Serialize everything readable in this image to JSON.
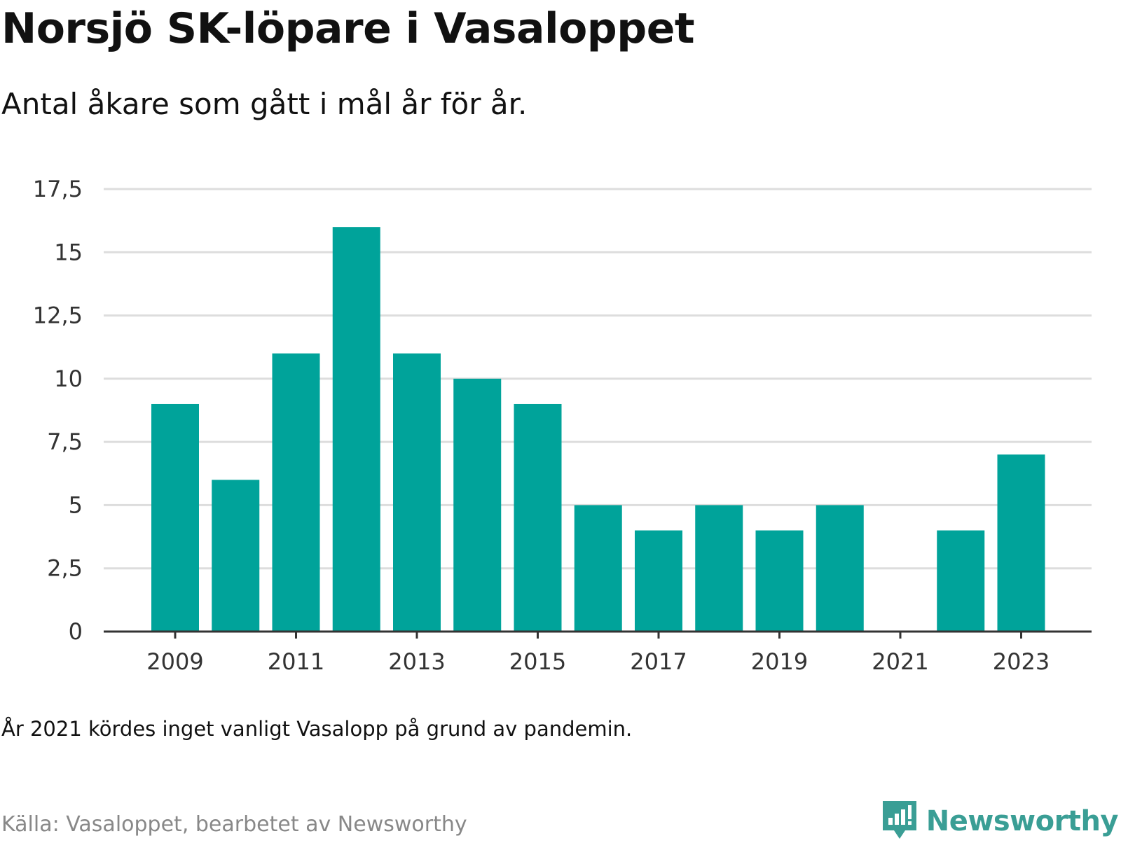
{
  "header": {
    "title": "Norsjö SK-löpare i Vasaloppet",
    "subtitle": "Antal åkare som gått i mål år för år."
  },
  "footer": {
    "note": "År 2021 kördes inget vanligt Vasalopp på grund av pandemin.",
    "source": "Källa: Vasaloppet, bearbetet av Newsworthy",
    "brand": "Newsworthy",
    "brand_icon": "newsworthy-logo-icon",
    "brand_color": "#3a9e95"
  },
  "chart_data": {
    "type": "bar",
    "title": "Norsjö SK-löpare i Vasaloppet",
    "subtitle": "Antal åkare som gått i mål år för år.",
    "categories": [
      "2009",
      "2010",
      "2011",
      "2012",
      "2013",
      "2014",
      "2015",
      "2016",
      "2017",
      "2018",
      "2019",
      "2020",
      "2021",
      "2022",
      "2023"
    ],
    "values": [
      9,
      6,
      11,
      16,
      11,
      10,
      9,
      5,
      4,
      5,
      4,
      5,
      0,
      4,
      7
    ],
    "xlabel": "",
    "ylabel": "",
    "ylim": [
      0,
      17.5
    ],
    "yticks": [
      0,
      2.5,
      5,
      7.5,
      10,
      12.5,
      15,
      17.5
    ],
    "ytick_labels": [
      "0",
      "2,5",
      "5",
      "7,5",
      "10",
      "12,5",
      "15",
      "17,5"
    ],
    "xtick_labels": [
      "2009",
      "2011",
      "2013",
      "2015",
      "2017",
      "2019",
      "2021",
      "2023"
    ],
    "bar_color": "#00a39a",
    "grid": true,
    "legend": "none"
  }
}
